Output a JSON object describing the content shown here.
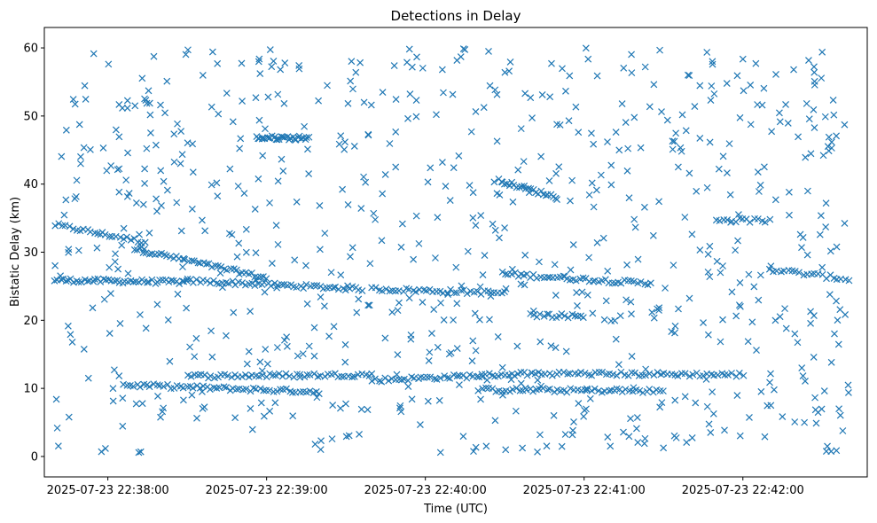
{
  "chart_data": {
    "type": "scatter",
    "title": "Detections in Delay",
    "xlabel": "Time (UTC)",
    "ylabel": "Bistatic Delay (km)",
    "marker": "x",
    "color": "#1f77b4",
    "grid": false,
    "legend": "none",
    "xlim": [
      "2025-07-23 22:37:36",
      "2025-07-23 22:42:47"
    ],
    "ylim": [
      -3,
      63
    ],
    "x_ticks": [
      "2025-07-23 22:38:00",
      "2025-07-23 22:39:00",
      "2025-07-23 22:40:00",
      "2025-07-23 22:41:00",
      "2025-07-23 22:42:00"
    ],
    "y_ticks": [
      "0",
      "10",
      "20",
      "30",
      "40",
      "50",
      "60"
    ],
    "tracks": [
      {
        "x": [
          "2025-07-23 22:37:40",
          "2025-07-23 22:38:14"
        ],
        "y": [
          34.0,
          31.5
        ],
        "points": 26
      },
      {
        "x": [
          "2025-07-23 22:38:10",
          "2025-07-23 22:39:00"
        ],
        "y": [
          30.5,
          26.2
        ],
        "points": 45
      },
      {
        "x": [
          "2025-07-23 22:37:40",
          "2025-07-23 22:38:30"
        ],
        "y": [
          25.9,
          25.6
        ],
        "points": 50
      },
      {
        "x": [
          "2025-07-23 22:38:30",
          "2025-07-23 22:39:36"
        ],
        "y": [
          25.8,
          24.6
        ],
        "points": 55
      },
      {
        "x": [
          "2025-07-23 22:39:40",
          "2025-07-23 22:40:30"
        ],
        "y": [
          24.6,
          24.0
        ],
        "points": 40
      },
      {
        "x": [
          "2025-07-23 22:40:30",
          "2025-07-23 22:41:24"
        ],
        "y": [
          26.8,
          25.4
        ],
        "points": 45
      },
      {
        "x": [
          "2025-07-23 22:42:10",
          "2025-07-23 22:42:40"
        ],
        "y": [
          27.5,
          26.0
        ],
        "points": 22
      },
      {
        "x": [
          "2025-07-23 22:38:06",
          "2025-07-23 22:39:20"
        ],
        "y": [
          10.5,
          9.5
        ],
        "points": 60
      },
      {
        "x": [
          "2025-07-23 22:38:30",
          "2025-07-23 22:39:40"
        ],
        "y": [
          11.8,
          12.0
        ],
        "points": 55
      },
      {
        "x": [
          "2025-07-23 22:39:40",
          "2025-07-23 22:40:40"
        ],
        "y": [
          11.2,
          12.2
        ],
        "points": 50
      },
      {
        "x": [
          "2025-07-23 22:40:20",
          "2025-07-23 22:41:30"
        ],
        "y": [
          9.8,
          9.6
        ],
        "points": 55
      },
      {
        "x": [
          "2025-07-23 22:40:40",
          "2025-07-23 22:42:00"
        ],
        "y": [
          12.2,
          12.0
        ],
        "points": 60
      },
      {
        "x": [
          "2025-07-23 22:38:56",
          "2025-07-23 22:39:16"
        ],
        "y": [
          46.8,
          46.8
        ],
        "points": 30
      },
      {
        "x": [
          "2025-07-23 22:40:28",
          "2025-07-23 22:40:50"
        ],
        "y": [
          40.5,
          38.0
        ],
        "points": 25
      },
      {
        "x": [
          "2025-07-23 22:40:40",
          "2025-07-23 22:41:00"
        ],
        "y": [
          20.8,
          20.6
        ],
        "points": 18
      },
      {
        "x": [
          "2025-07-23 22:41:50",
          "2025-07-23 22:42:10"
        ],
        "y": [
          34.8,
          34.6
        ],
        "points": 15
      }
    ],
    "scattered_detections": {
      "x_range": [
        "2025-07-23 22:37:40",
        "2025-07-23 22:42:40"
      ],
      "y_range": [
        0.5,
        60.0
      ],
      "points": 750
    }
  }
}
